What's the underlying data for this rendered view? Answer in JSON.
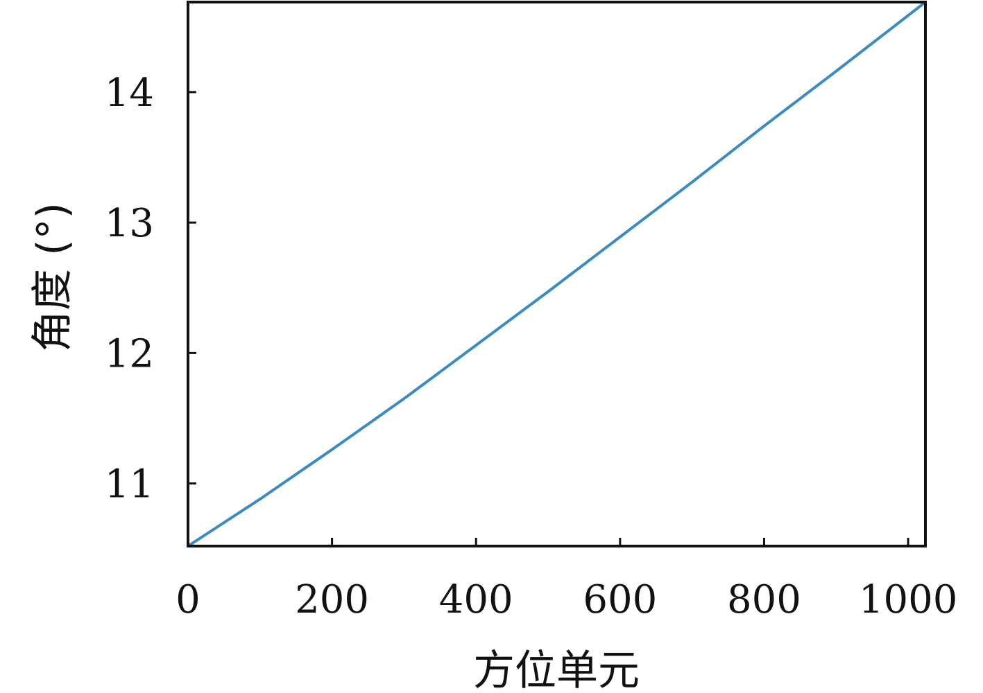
{
  "chart_data": {
    "type": "line",
    "title": "",
    "xlabel": "方位单元",
    "ylabel": "角度 (°)",
    "xlim": [
      0,
      1024
    ],
    "ylim": [
      10.52,
      14.69
    ],
    "xticks": [
      0,
      200,
      400,
      600,
      800,
      1000
    ],
    "xtick_labels": [
      "0",
      "200",
      "400",
      "600",
      "800",
      "1000"
    ],
    "yticks": [
      11,
      12,
      13,
      14
    ],
    "ytick_labels": [
      "11",
      "12",
      "13",
      "14"
    ],
    "grid": false,
    "legend": "none",
    "series": [
      {
        "color": "#3a8ac4",
        "x": [
          0,
          100,
          200,
          300,
          400,
          500,
          600,
          700,
          800,
          900,
          1024
        ],
        "y": [
          10.52,
          10.88,
          11.26,
          11.65,
          12.06,
          12.47,
          12.89,
          13.31,
          13.74,
          14.16,
          14.69
        ]
      }
    ]
  }
}
